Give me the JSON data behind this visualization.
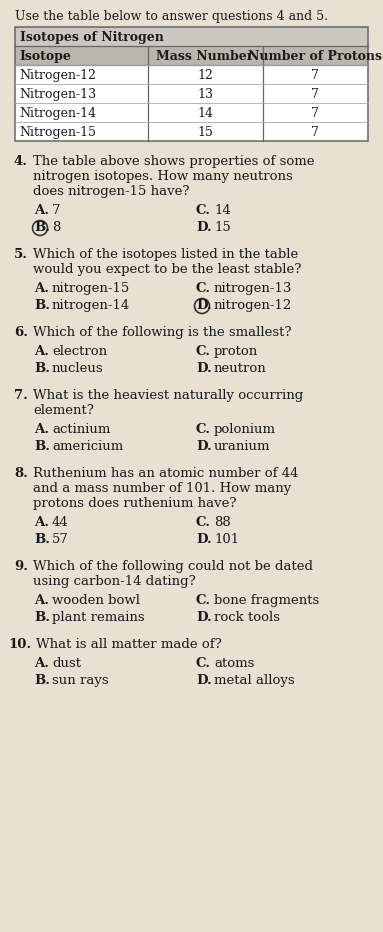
{
  "page_bg": "#e8e0d0",
  "title_instruction": "Use the table below to answer questions 4 and 5.",
  "table_title": "Isotopes of Nitrogen",
  "table_headers": [
    "Isotope",
    "Mass Number",
    "Number of Protons"
  ],
  "table_rows": [
    [
      "Nitrogen-12",
      "12",
      "7"
    ],
    [
      "Nitrogen-13",
      "13",
      "7"
    ],
    [
      "Nitrogen-14",
      "14",
      "7"
    ],
    [
      "Nitrogen-15",
      "15",
      "7"
    ]
  ],
  "questions": [
    {
      "num": "4.",
      "text": "The table above shows properties of some\nnitrogen isotopes. How many neutrons\ndoes nitrogen-15 have?",
      "choices": [
        [
          "A.",
          "7",
          "C.",
          "14"
        ],
        [
          "B.",
          "8",
          "D.",
          "15"
        ]
      ],
      "circle": "B"
    },
    {
      "num": "5.",
      "text": "Which of the isotopes listed in the table\nwould you expect to be the least stable?",
      "choices": [
        [
          "A.",
          "nitrogen-15",
          "C.",
          "nitrogen-13"
        ],
        [
          "B.",
          "nitrogen-14",
          "D.",
          "nitrogen-12"
        ]
      ],
      "circle": "D"
    },
    {
      "num": "6.",
      "text": "Which of the following is the smallest?",
      "choices": [
        [
          "A.",
          "electron",
          "C.",
          "proton"
        ],
        [
          "B.",
          "nucleus",
          "D.",
          "neutron"
        ]
      ],
      "circle": null
    },
    {
      "num": "7.",
      "text": "What is the heaviest naturally occurring\nelement?",
      "choices": [
        [
          "A.",
          "actinium",
          "C.",
          "polonium"
        ],
        [
          "B.",
          "americium",
          "D.",
          "uranium"
        ]
      ],
      "circle": null
    },
    {
      "num": "8.",
      "text": "Ruthenium has an atomic number of 44\nand a mass number of 101. How many\nprotons does ruthenium have?",
      "choices": [
        [
          "A.",
          "44",
          "C.",
          "88"
        ],
        [
          "B.",
          "57",
          "D.",
          "101"
        ]
      ],
      "circle": null
    },
    {
      "num": "9.",
      "text": "Which of the following could not be dated\nusing carbon-14 dating?",
      "choices": [
        [
          "A.",
          "wooden bowl",
          "C.",
          "bone fragments"
        ],
        [
          "B.",
          "plant remains",
          "D.",
          "rock tools"
        ]
      ],
      "circle": null
    },
    {
      "num": "10.",
      "text": "What is all matter made of?",
      "choices": [
        [
          "A.",
          "dust",
          "C.",
          "atoms"
        ],
        [
          "B.",
          "sun rays",
          "D.",
          "metal alloys"
        ]
      ],
      "circle": null
    }
  ],
  "table_title_bg": "#ccc8c0",
  "table_header_bg": "#bab6ae",
  "table_row_bg": "#ffffff",
  "line_color_dark": "#666666",
  "line_color_light": "#aaaaaa",
  "text_color_dark": "#1a1a2e",
  "text_color_faded": "#7a7a8a"
}
